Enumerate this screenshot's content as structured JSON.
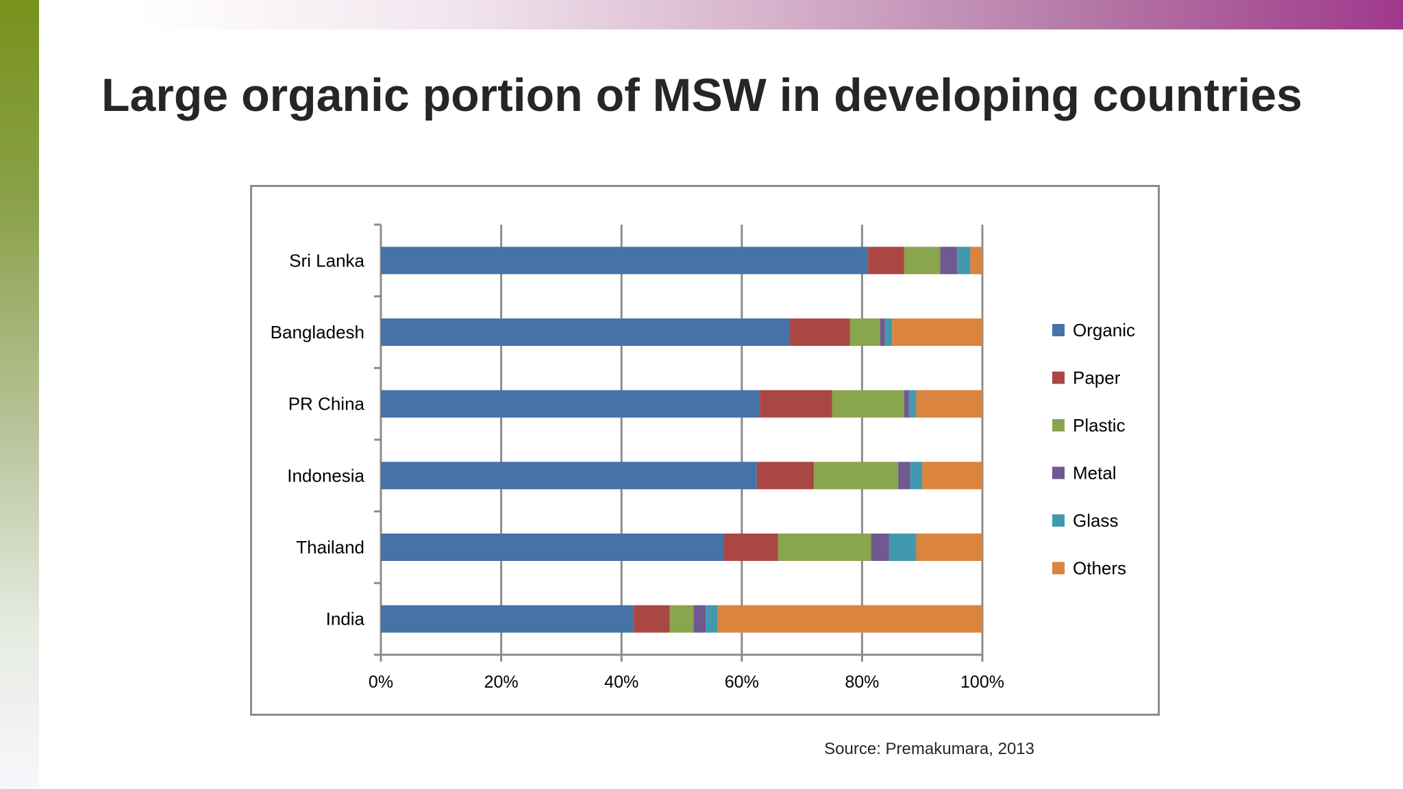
{
  "slide": {
    "title": "Large organic portion of MSW in developing countries",
    "source": "Source: Premakumara, 2013"
  },
  "chart_data": {
    "type": "bar",
    "orientation": "horizontal",
    "stacked": "percent",
    "categories": [
      "Sri Lanka",
      "Bangladesh",
      "PR China",
      "Indonesia",
      "Thailand",
      "India"
    ],
    "series": [
      {
        "name": "Organic",
        "color": "#4572a7",
        "values": [
          81,
          68,
          63,
          62.5,
          57,
          42
        ]
      },
      {
        "name": "Paper",
        "color": "#aa4643",
        "values": [
          6,
          10,
          12,
          9.5,
          9,
          6
        ]
      },
      {
        "name": "Plastic",
        "color": "#89a54e",
        "values": [
          6,
          5,
          12,
          14,
          15.5,
          4
        ]
      },
      {
        "name": "Metal",
        "color": "#71588f",
        "values": [
          2.8,
          0.8,
          0.8,
          2,
          3,
          2
        ]
      },
      {
        "name": "Glass",
        "color": "#4198af",
        "values": [
          2.2,
          1.2,
          1.2,
          2,
          4.5,
          2
        ]
      },
      {
        "name": "Others",
        "color": "#db843d",
        "values": [
          2,
          15,
          11,
          10,
          11,
          44
        ]
      }
    ],
    "x_ticks": [
      "0%",
      "20%",
      "40%",
      "60%",
      "80%",
      "100%"
    ],
    "xlim": [
      0,
      100
    ],
    "grid": "vertical",
    "legend": "right"
  }
}
